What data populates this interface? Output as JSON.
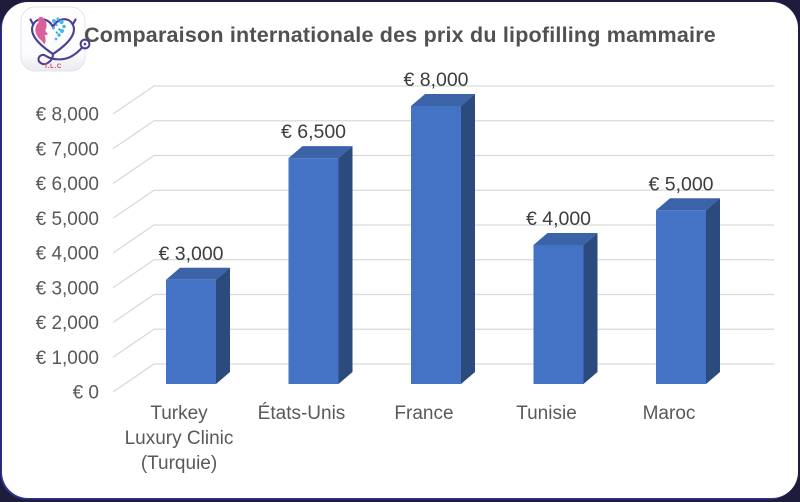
{
  "header": {
    "title": "Comparaison internationale des prix du lipofilling mammaire"
  },
  "logo": {
    "caption": "T.L.C",
    "description": "heart-shaped stethoscope with pink woman profile and blue butterfly"
  },
  "chart_data": {
    "type": "bar",
    "style": "3d-column",
    "title": "Comparaison internationale des prix du lipofilling mammaire",
    "categories": [
      [
        "Turkey",
        "Luxury Clinic",
        "(Turquie)"
      ],
      [
        "États-Unis"
      ],
      [
        "France"
      ],
      [
        "Tunisie"
      ],
      [
        "Maroc"
      ]
    ],
    "values": [
      3000,
      6500,
      8000,
      4000,
      5000
    ],
    "data_labels": [
      "€ 3,000",
      "€ 6,500",
      "€ 8,000",
      "€ 4,000",
      "€ 5,000"
    ],
    "currency": "EUR",
    "xlabel": "",
    "ylabel": "",
    "ylim": [
      0,
      8000
    ],
    "y_tick_step": 1000,
    "grid": true,
    "legend": false,
    "y_ticks": [
      {
        "value": 0,
        "label": "€ 0"
      },
      {
        "value": 1000,
        "label": "€ 1,000"
      },
      {
        "value": 2000,
        "label": "€ 2,000"
      },
      {
        "value": 3000,
        "label": "€ 3,000"
      },
      {
        "value": 4000,
        "label": "€ 4,000"
      },
      {
        "value": 5000,
        "label": "€ 5,000"
      },
      {
        "value": 6000,
        "label": "€ 6,000"
      },
      {
        "value": 7000,
        "label": "€ 7,000"
      },
      {
        "value": 8000,
        "label": "€ 8,000"
      }
    ],
    "colors": {
      "bar_front": "#4472c4",
      "bar_top": "#3c62a8",
      "bar_side": "#2b4a7d",
      "gridline": "#d9d9d9",
      "axis_text": "#595959",
      "data_label_text": "#3d3d3d",
      "title_text": "#515151",
      "card_background": "#ffffff",
      "page_background": "#1d1d3b"
    }
  }
}
